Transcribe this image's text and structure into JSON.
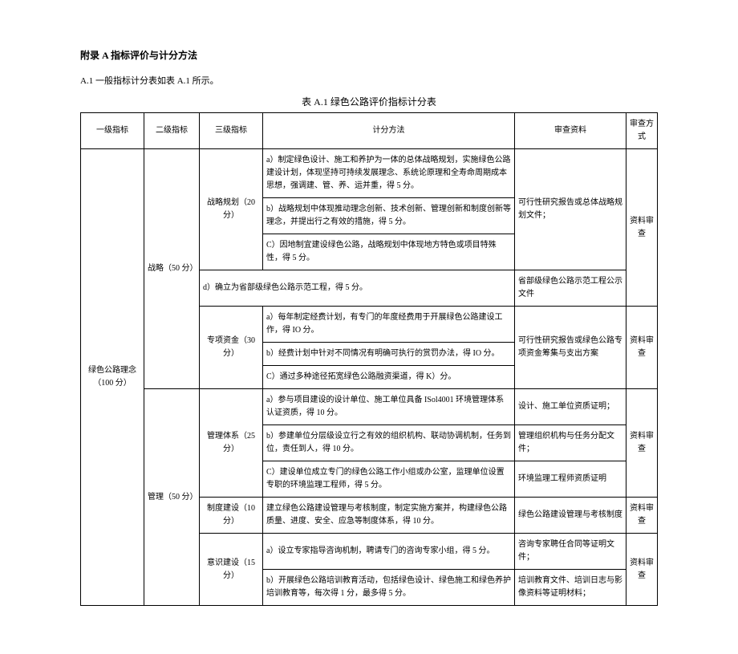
{
  "header": "附录 A 指标评价与计分方法",
  "subheader": "A.1 一般指标计分表如表 A.1 所示。",
  "tableTitle": "表 A.1 绿色公路评价指标计分表",
  "columns": {
    "l1": "一级指标",
    "l2": "二级指标",
    "l3": "三级指标",
    "method": "计分方法",
    "doc": "审查资料",
    "mode": "审查方式"
  },
  "l1": "绿色公路理念（100 分）",
  "l2a": "战略（50 分）",
  "l2b": "管理（50 分）",
  "l3_zl": "战略规划（20 分）",
  "l3_zj": "专项资金（30 分）",
  "l3_gl": "管理体系（25 分）",
  "l3_zd": "制度建设（10 分）",
  "l3_ys": "意识建设（15 分）",
  "m_a": "a）制定绿色设计、施工和养护为一体的总体战略规划，实施绿色公路建设计划，体现坚持可持续发展理念、系统论原理和全寿命周期成本思想，强调建、管、养、运并重，得 5 分。",
  "m_b": "b）战略规划中体现推动理念创新、技术创新、管理创新和制度创新等理念，并提出行之有效的措施，得 5 分。",
  "m_c": "C）因地制宜建设绿色公路，战略规划中体现地方特色或项目特殊性，得 5 分。",
  "m_d": "d）确立为省部级绿色公路示范工程，得 5 分。",
  "m_za": "a）每年制定经费计划，有专门的年度经费用于开展绿色公路建设工作，得 IO 分。",
  "m_zb": "b）经费计划中针对不同情况有明确可执行的赏罚办法，得 IO 分。",
  "m_zc": "C）通过多种途径拓宽绿色公路融资渠道，得 K）分。",
  "m_ga": "a）参与项目建设的设计单位、施工单位具备 ISol4001 环境管理体系认证资质，得 10 分。",
  "m_gb": "b）参建单位分层级设立行之有效的组织机构、联动协调机制，任务到位，责任到人，得 10 分。",
  "m_gc": "C）建设单位成立专门的绿色公路工作小组或办公室，监理单位设置专职的环境监理工程师，得 5 分。",
  "m_zd1": "建立绿色公路建设管理与考核制度，制定实施方案并，构建绿色公路质量、进度、安全、应急等制度体系，得 10 分。",
  "m_ya": "a）设立专家指导咨询机制，聘请专门的咨询专家小组，得 5 分。",
  "m_yb": "b）开展绿色公路培训教育活动，包括绿色设计、绿色施工和绿色养护培训教育等，每次得 1 分，最多得 5 分。",
  "d_abc": "可行性研究报告或总体战略规划文件；",
  "d_d": "省部级绿色公路示范工程公示文件",
  "d_z": "可行性研究报告或绿色公路专项资金筹集与支出方案",
  "d_ga": "设计、施工单位资质证明；",
  "d_gb": "管理组织机构与任务分配文件；",
  "d_gc": "环境监理工程师资质证明",
  "d_zd": "绿色公路建设管理与考核制度",
  "d_ya": "咨询专家聘任合同等证明文件；",
  "d_yb": "培训教育文件、培训日志与影像资料等证明材料；",
  "mode": "资料审查"
}
